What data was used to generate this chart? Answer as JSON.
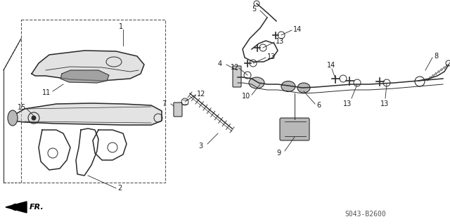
{
  "bg_color": "#ffffff",
  "line_color": "#2a2a2a",
  "text_color": "#1a1a1a",
  "fr_label": "FR.",
  "footer_code": "S043-B2600",
  "lw_main": 1.1,
  "lw_thin": 0.7,
  "fs_label": 7
}
